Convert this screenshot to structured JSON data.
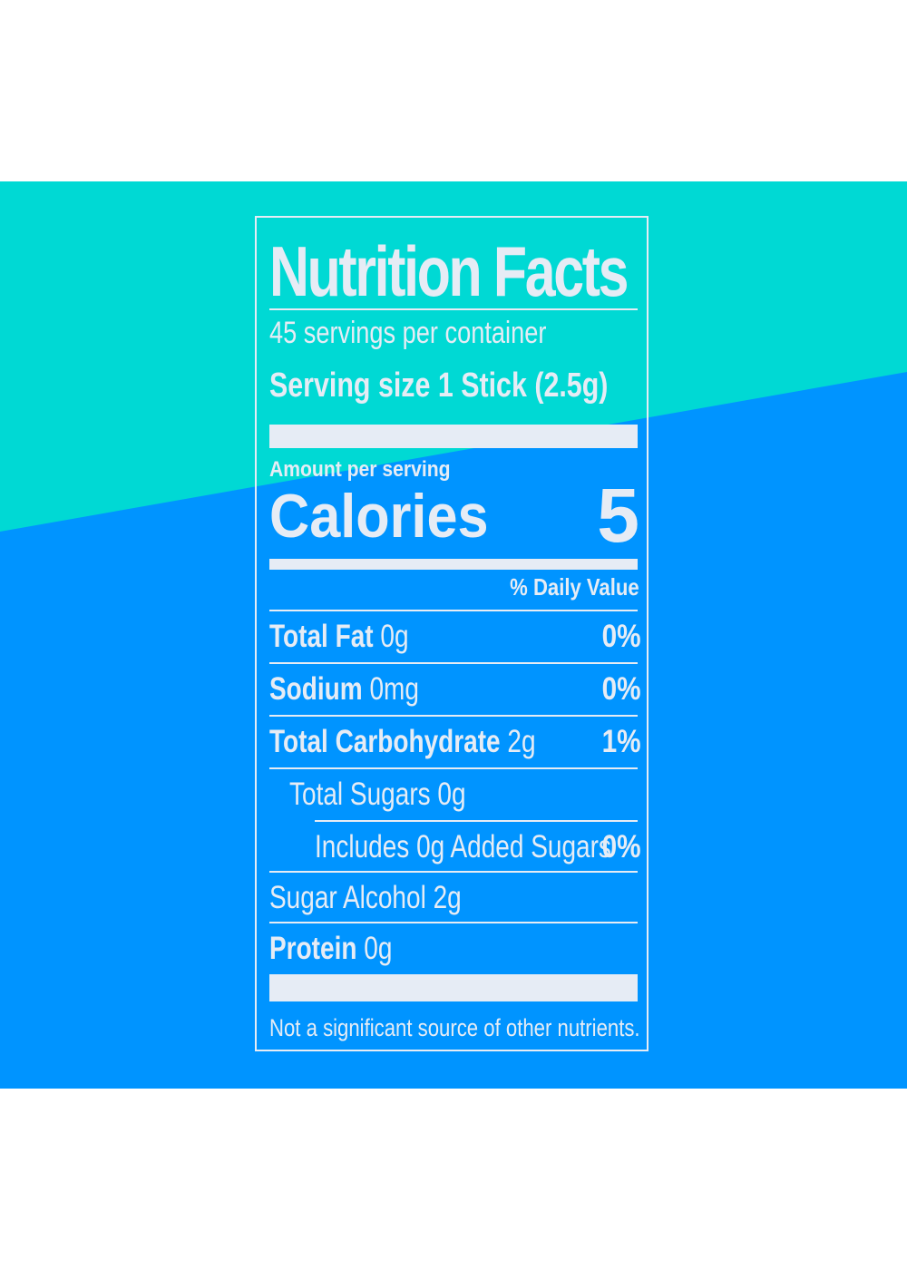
{
  "colors": {
    "top_band": "#00d9d4",
    "bottom_band": "#0094ff",
    "ink": "#e6ecf5"
  },
  "label": {
    "title": "Nutrition Facts",
    "servings_per_container": "45 servings per container",
    "serving_size": "Serving size 1 Stick (2.5g)",
    "amount_per_serving": "Amount per serving",
    "calories_label": "Calories",
    "calories_value": "5",
    "daily_value_header": "% Daily Value",
    "nutrients": [
      {
        "name": "Total Fat",
        "amount": "0g",
        "dv": "0%"
      },
      {
        "name": "Sodium",
        "amount": "0mg",
        "dv": "0%"
      },
      {
        "name": "Total Carbohydrate",
        "amount": "2g",
        "dv": "1%"
      },
      {
        "name": "Total Sugars 0g",
        "amount": "",
        "dv": ""
      },
      {
        "name": "Includes 0g Added Sugars",
        "amount": "",
        "dv": "0%"
      },
      {
        "name": "Sugar Alcohol 2g",
        "amount": "",
        "dv": ""
      },
      {
        "name": "Protein",
        "amount": "0g",
        "dv": ""
      }
    ],
    "footnote": "Not a significant source of other nutrients."
  }
}
